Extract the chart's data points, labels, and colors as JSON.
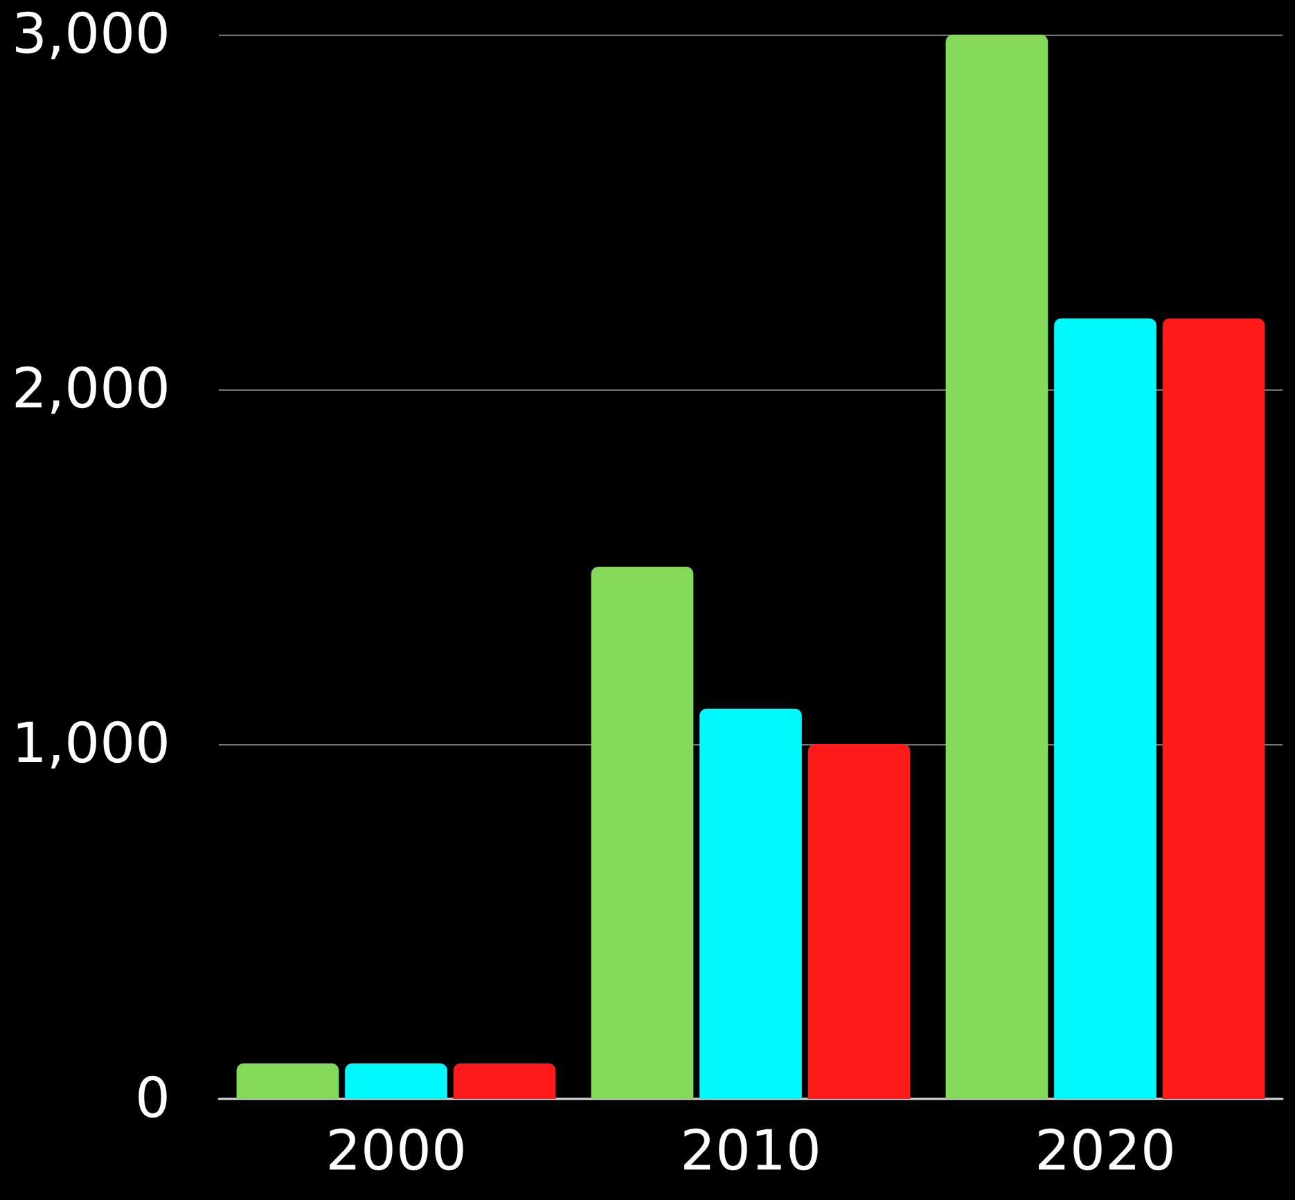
{
  "chart_data": {
    "type": "bar",
    "categories": [
      "2000",
      "2010",
      "2020"
    ],
    "series": [
      {
        "color": "#84d95a",
        "values": [
          100,
          1500,
          3000
        ]
      },
      {
        "color": "#00f9fc",
        "values": [
          100,
          1100,
          2200
        ]
      },
      {
        "color": "#ff1a1a",
        "values": [
          100,
          1000,
          2200
        ]
      }
    ],
    "ylim": [
      0,
      3000
    ],
    "yticks": [
      {
        "value": 0,
        "label": "0"
      },
      {
        "value": 1000,
        "label": "1,000"
      },
      {
        "value": 2000,
        "label": "2,000"
      },
      {
        "value": 3000,
        "label": "3,000"
      }
    ],
    "grid": "y"
  }
}
